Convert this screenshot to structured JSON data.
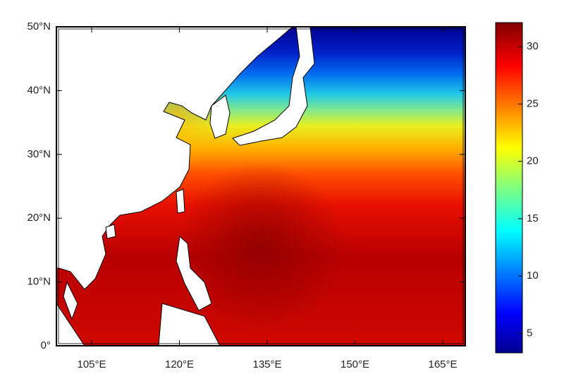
{
  "map": {
    "lat_labels": [
      "50°N",
      "40°N",
      "30°N",
      "20°N",
      "10°N",
      "0°"
    ],
    "lon_labels": [
      "105°E",
      "120°E",
      "135°E",
      "150°E",
      "165°E"
    ],
    "colorbar": {
      "range": [
        3.3,
        32.1
      ],
      "ticks": [
        5,
        10,
        15,
        20,
        25,
        30
      ]
    }
  }
}
